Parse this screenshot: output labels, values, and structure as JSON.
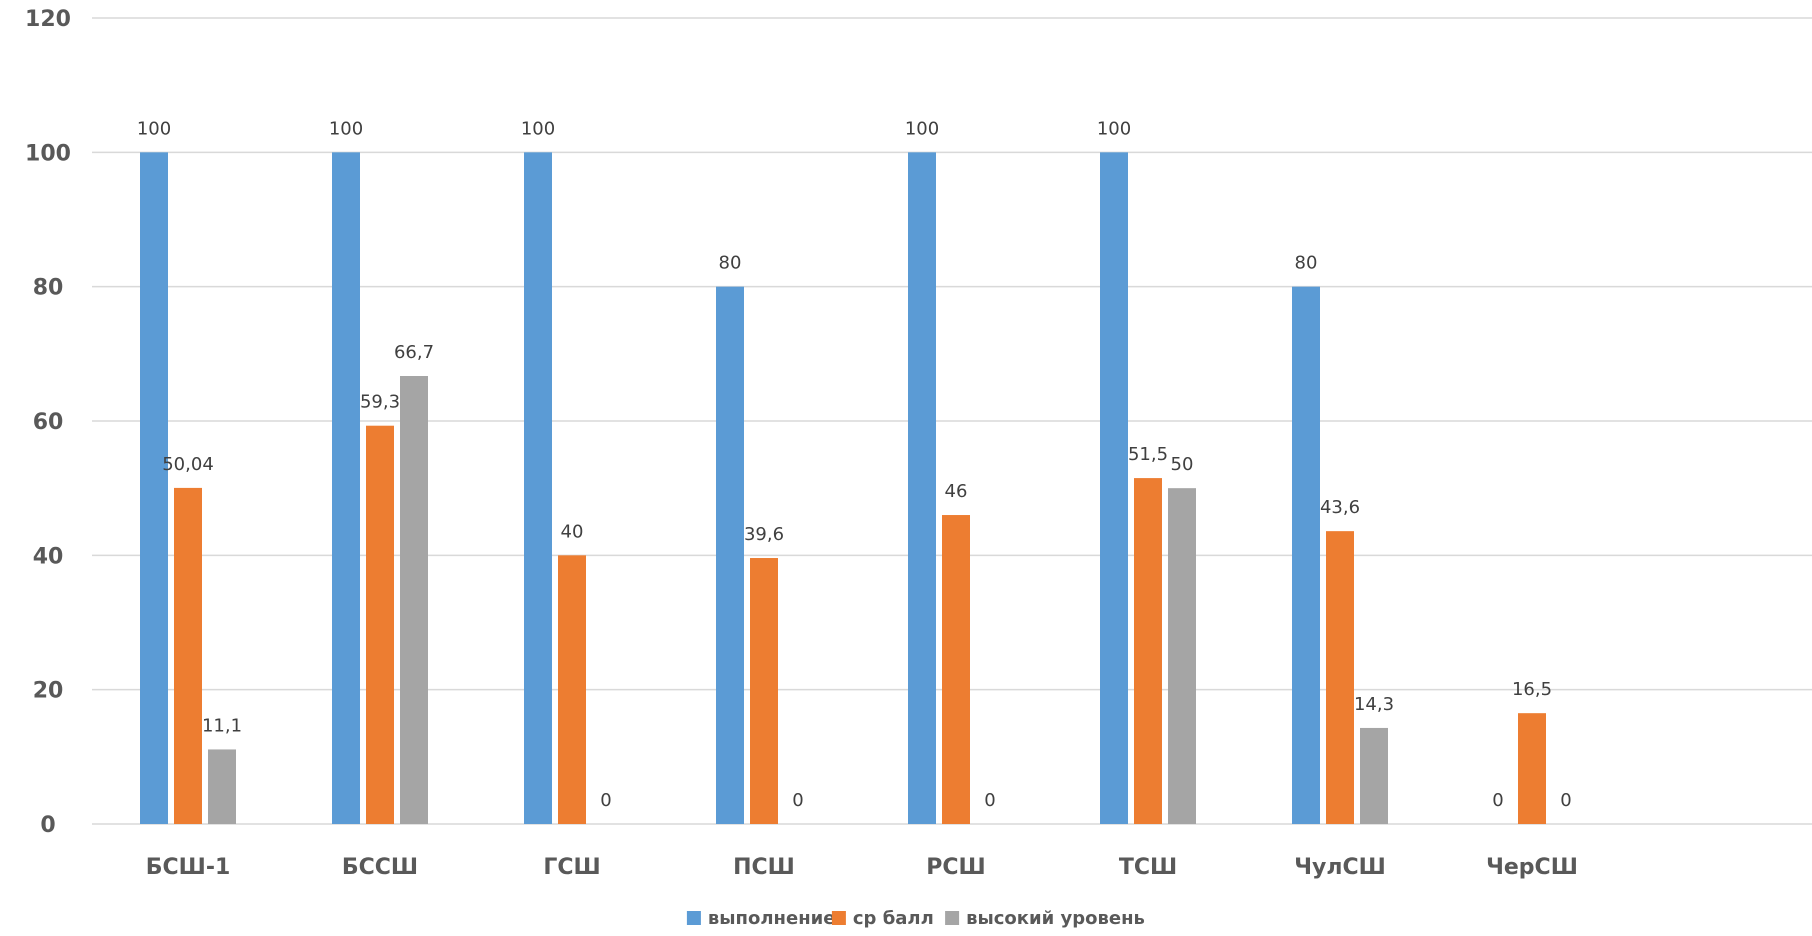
{
  "chart_data": {
    "type": "bar",
    "title": "",
    "xlabel": "",
    "ylabel": "",
    "ylim": [
      0,
      120
    ],
    "yticks": [
      0,
      20,
      40,
      60,
      80,
      100,
      120
    ],
    "grid": true,
    "legend_position": "bottom",
    "categories": [
      "БСШ-1",
      "БССШ",
      "ГСШ",
      "ПСШ",
      "РСШ",
      "ТСШ",
      "ЧулСШ",
      "ЧерСШ"
    ],
    "series": [
      {
        "name": "выполнение",
        "color": "#5B9BD5",
        "values": [
          100,
          100,
          100,
          80,
          100,
          100,
          80,
          0
        ],
        "labels": [
          "100",
          "100",
          "100",
          "80",
          "100",
          "100",
          "80",
          "0"
        ]
      },
      {
        "name": "ср балл",
        "color": "#ED7D31",
        "values": [
          50.04,
          59.3,
          40,
          39.6,
          46,
          51.5,
          43.6,
          16.5
        ],
        "labels": [
          "50,04",
          "59,3",
          "40",
          "39,6",
          "46",
          "51,5",
          "43,6",
          "16,5"
        ]
      },
      {
        "name": "высокий уровень",
        "color": "#A5A5A5",
        "values": [
          11.1,
          66.7,
          0,
          0,
          0,
          50,
          14.3,
          0
        ],
        "labels": [
          "11,1",
          "66,7",
          "0",
          "0",
          "0",
          "50",
          "14,3",
          "0"
        ]
      }
    ]
  }
}
